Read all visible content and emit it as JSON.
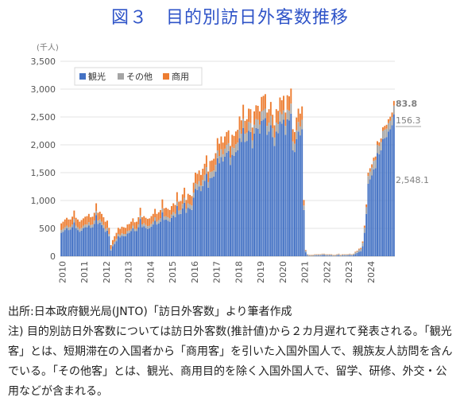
{
  "title": "図３　目的別訪日外客数推移",
  "source": "出所:日本政府観光局(JNTO)「訪日外客数」より筆者作成",
  "note": "注) 目的別訪日外客数については訪日外客数(推計値)から２カ月遅れて発表される。「観光客」とは、短期滞在の入国者から「商用客」を引いた入国外国人で、親族友人訪問を含んでいる。「その他客」とは、観光、商用目的を除く入国外国人で、留学、研修、外交・公用などが含まれる。",
  "chart_data": {
    "type": "bar",
    "stacked": true,
    "granularity": "monthly",
    "x_start": "2010-01",
    "x_end": "2024-04",
    "unit_label": "(千人)",
    "ylim": [
      0,
      3500
    ],
    "yticks": [
      "0",
      "500",
      "1,000",
      "1,500",
      "2,000",
      "2,500",
      "3,000",
      "3,500"
    ],
    "xticks": [
      "2010",
      "2011",
      "2012",
      "2013",
      "2014",
      "2015",
      "2016",
      "2017",
      "2018",
      "2019",
      "2020",
      "2021",
      "2022",
      "2023",
      "2024"
    ],
    "grid": true,
    "legend_position": "top-left",
    "series_colors": {
      "tourism": "#4472c4",
      "other": "#a5a5a5",
      "business": "#ed7d31"
    },
    "series": [
      {
        "name": "観光",
        "key": "tourism",
        "values": [
          420,
          440,
          470,
          500,
          470,
          480,
          520,
          610,
          500,
          470,
          440,
          460,
          500,
          520,
          520,
          550,
          510,
          520,
          580,
          740,
          580,
          600,
          560,
          510,
          440,
          460,
          360,
          100,
          180,
          220,
          270,
          360,
          340,
          370,
          360,
          360,
          410,
          420,
          450,
          500,
          450,
          450,
          520,
          670,
          520,
          540,
          510,
          490,
          500,
          530,
          570,
          640,
          570,
          590,
          620,
          790,
          650,
          660,
          640,
          620,
          690,
          730,
          700,
          900,
          750,
          760,
          860,
          960,
          780,
          870,
          850,
          830,
          1050,
          1210,
          1190,
          1250,
          1170,
          1260,
          1350,
          1480,
          1230,
          1400,
          1410,
          1430,
          1520,
          1760,
          1670,
          1780,
          1700,
          1790,
          1860,
          1890,
          1640,
          1820,
          1800,
          1870,
          1900,
          2120,
          2050,
          2300,
          2050,
          2070,
          2250,
          2230,
          1940,
          2200,
          2300,
          2290,
          2200,
          2430,
          2450,
          2480,
          2180,
          2240,
          2350,
          2140,
          1980,
          2240,
          2210,
          2420,
          2380,
          2450,
          2180,
          2460,
          2440,
          2560,
          1900,
          1870,
          2100,
          2240,
          2170,
          2280,
          830,
          70,
          10,
          0,
          0,
          0,
          10,
          10,
          10,
          10,
          20,
          20,
          10,
          10,
          10,
          10,
          0,
          0,
          10,
          20,
          0,
          10,
          10,
          10,
          10,
          20,
          10,
          20,
          40,
          60,
          80,
          90,
          180,
          420,
          760,
          1300,
          1380,
          1450,
          1560,
          1580,
          1850,
          1830,
          1900,
          2100,
          2120,
          2140,
          2240,
          2280,
          2350,
          2548
        ]
      },
      {
        "name": "その他",
        "key": "other",
        "values": [
          50,
          50,
          50,
          50,
          50,
          50,
          50,
          60,
          50,
          50,
          50,
          50,
          50,
          50,
          50,
          60,
          50,
          50,
          60,
          70,
          60,
          60,
          60,
          50,
          50,
          50,
          40,
          30,
          30,
          40,
          40,
          40,
          40,
          40,
          40,
          40,
          40,
          40,
          40,
          50,
          40,
          40,
          50,
          60,
          50,
          50,
          50,
          50,
          50,
          50,
          50,
          60,
          50,
          60,
          60,
          70,
          60,
          60,
          60,
          60,
          60,
          60,
          60,
          80,
          70,
          70,
          80,
          90,
          70,
          80,
          80,
          80,
          90,
          100,
          100,
          100,
          100,
          110,
          110,
          120,
          100,
          110,
          110,
          110,
          120,
          140,
          130,
          140,
          130,
          140,
          140,
          140,
          130,
          140,
          140,
          140,
          140,
          150,
          150,
          170,
          150,
          150,
          160,
          160,
          140,
          160,
          160,
          160,
          160,
          170,
          170,
          170,
          160,
          160,
          170,
          160,
          150,
          160,
          160,
          170,
          170,
          170,
          160,
          170,
          170,
          180,
          160,
          150,
          160,
          170,
          160,
          170,
          80,
          30,
          20,
          20,
          20,
          20,
          20,
          20,
          20,
          20,
          20,
          20,
          20,
          20,
          20,
          20,
          20,
          20,
          20,
          20,
          20,
          20,
          20,
          20,
          20,
          20,
          20,
          20,
          30,
          30,
          40,
          40,
          60,
          90,
          120,
          140,
          140,
          140,
          150,
          150,
          150,
          150,
          150,
          150,
          150,
          150,
          150,
          150,
          150,
          156
        ]
      },
      {
        "name": "商用",
        "key": "business",
        "values": [
          120,
          130,
          140,
          140,
          140,
          130,
          140,
          150,
          140,
          140,
          130,
          140,
          130,
          140,
          150,
          150,
          140,
          140,
          140,
          140,
          140,
          140,
          140,
          140,
          130,
          130,
          110,
          70,
          80,
          100,
          110,
          110,
          110,
          120,
          120,
          110,
          120,
          120,
          130,
          130,
          120,
          130,
          130,
          140,
          130,
          130,
          130,
          130,
          130,
          140,
          140,
          150,
          140,
          140,
          150,
          160,
          150,
          150,
          150,
          150,
          150,
          160,
          160,
          170,
          160,
          160,
          170,
          180,
          160,
          170,
          170,
          170,
          180,
          190,
          190,
          190,
          190,
          200,
          200,
          210,
          190,
          200,
          200,
          210,
          210,
          220,
          220,
          230,
          210,
          220,
          230,
          230,
          210,
          220,
          220,
          230,
          230,
          240,
          240,
          250,
          230,
          240,
          240,
          250,
          230,
          240,
          250,
          250,
          240,
          260,
          260,
          260,
          240,
          240,
          250,
          240,
          220,
          240,
          240,
          260,
          250,
          260,
          240,
          260,
          260,
          270,
          220,
          210,
          230,
          240,
          230,
          240,
          100,
          10,
          5,
          5,
          5,
          5,
          5,
          5,
          5,
          5,
          5,
          5,
          5,
          5,
          5,
          5,
          5,
          5,
          5,
          5,
          5,
          5,
          5,
          5,
          5,
          5,
          5,
          5,
          10,
          10,
          15,
          20,
          25,
          40,
          50,
          60,
          60,
          60,
          60,
          60,
          65,
          65,
          65,
          65,
          70,
          70,
          70,
          75,
          80,
          84
        ]
      }
    ],
    "annotations": {
      "business_latest": "83.8",
      "other_latest": "156.3",
      "tourism_latest": "2,548.1"
    }
  }
}
